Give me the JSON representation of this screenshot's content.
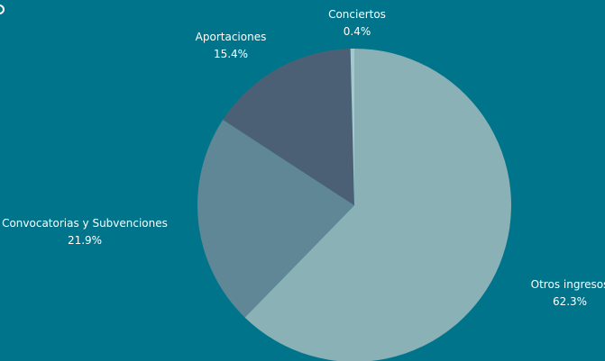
{
  "chart_data": {
    "type": "pie",
    "title": "",
    "slices": [
      {
        "label": "Otros ingresos",
        "value": 62.3,
        "display": "62.3%",
        "color": "#8ab1b6"
      },
      {
        "label": "Convocatorias y Subvenciones",
        "value": 21.9,
        "display": "21.9%",
        "color": "#5f8795"
      },
      {
        "label": "Aportaciones",
        "value": 15.4,
        "display": "15.4%",
        "color": "#4b6075"
      },
      {
        "label": "Conciertos",
        "value": 0.4,
        "display": "0.4%",
        "color": "#a3c9cc"
      }
    ],
    "start_angle_deg": 0,
    "direction": "clockwise",
    "legend": "none",
    "background": "#00748a",
    "label_color": "#ffffff"
  }
}
